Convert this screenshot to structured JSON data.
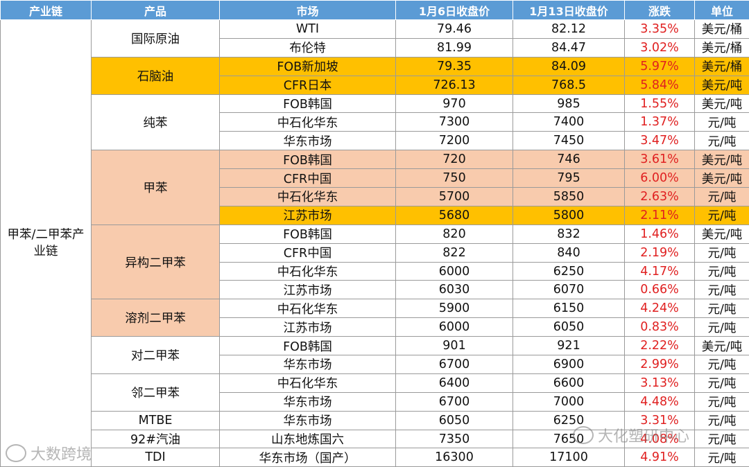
{
  "headers": {
    "chain": "产业链",
    "product": "产品",
    "market": "市场",
    "close_jan6": "1月6日收盘价",
    "close_jan13": "1月13日收盘价",
    "change": "涨跌",
    "unit": "单位"
  },
  "chain_label": "甲苯/二甲苯产业链",
  "groups": [
    {
      "product": "国际原油",
      "style": "plain",
      "rows": [
        {
          "market": "WTI",
          "jan6": "79.46",
          "jan13": "82.12",
          "change": "3.35%",
          "unit": "美元/桶",
          "hl": ""
        },
        {
          "market": "布伦特",
          "jan6": "81.99",
          "jan13": "84.47",
          "change": "3.02%",
          "unit": "美元/桶",
          "hl": ""
        }
      ]
    },
    {
      "product": "石脑油",
      "style": "gold",
      "rows": [
        {
          "market": "FOB新加坡",
          "jan6": "79.35",
          "jan13": "84.09",
          "change": "5.97%",
          "unit": "美元/桶",
          "hl": "gold"
        },
        {
          "market": "CFR日本",
          "jan6": "726.13",
          "jan13": "768.5",
          "change": "5.84%",
          "unit": "美元/吨",
          "hl": "gold"
        }
      ]
    },
    {
      "product": "纯苯",
      "style": "plain",
      "rows": [
        {
          "market": "FOB韩国",
          "jan6": "970",
          "jan13": "985",
          "change": "1.55%",
          "unit": "美元/吨",
          "hl": ""
        },
        {
          "market": "中石化华东",
          "jan6": "7300",
          "jan13": "7400",
          "change": "1.37%",
          "unit": "元/吨",
          "hl": ""
        },
        {
          "market": "华东市场",
          "jan6": "7200",
          "jan13": "7450",
          "change": "3.47%",
          "unit": "元/吨",
          "hl": ""
        }
      ]
    },
    {
      "product": "甲苯",
      "style": "peach",
      "rows": [
        {
          "market": "FOB韩国",
          "jan6": "720",
          "jan13": "746",
          "change": "3.61%",
          "unit": "美元/吨",
          "hl": "peach"
        },
        {
          "market": "CFR中国",
          "jan6": "750",
          "jan13": "795",
          "change": "6.00%",
          "unit": "美元/吨",
          "hl": "peach"
        },
        {
          "market": "中石化华东",
          "jan6": "5700",
          "jan13": "5850",
          "change": "2.63%",
          "unit": "元/吨",
          "hl": "peach"
        },
        {
          "market": "江苏市场",
          "jan6": "5680",
          "jan13": "5800",
          "change": "2.11%",
          "unit": "元/吨",
          "hl": "gold"
        }
      ]
    },
    {
      "product": "异构二甲苯",
      "style": "peach",
      "rows": [
        {
          "market": "FOB韩国",
          "jan6": "820",
          "jan13": "832",
          "change": "1.46%",
          "unit": "美元/吨",
          "hl": ""
        },
        {
          "market": "CFR中国",
          "jan6": "822",
          "jan13": "840",
          "change": "2.19%",
          "unit": "元/吨",
          "hl": ""
        },
        {
          "market": "中石化华东",
          "jan6": "6000",
          "jan13": "6250",
          "change": "4.17%",
          "unit": "元/吨",
          "hl": ""
        },
        {
          "market": "江苏市场",
          "jan6": "6030",
          "jan13": "6070",
          "change": "0.66%",
          "unit": "元/吨",
          "hl": ""
        }
      ]
    },
    {
      "product": "溶剂二甲苯",
      "style": "peach",
      "rows": [
        {
          "market": "中石化华东",
          "jan6": "5900",
          "jan13": "6150",
          "change": "4.24%",
          "unit": "元/吨",
          "hl": ""
        },
        {
          "market": "江苏市场",
          "jan6": "6000",
          "jan13": "6050",
          "change": "0.83%",
          "unit": "元/吨",
          "hl": ""
        }
      ]
    },
    {
      "product": "对二甲苯",
      "style": "plain",
      "rows": [
        {
          "market": "FOB韩国",
          "jan6": "901",
          "jan13": "921",
          "change": "2.22%",
          "unit": "美元/吨",
          "hl": ""
        },
        {
          "market": "华东市场",
          "jan6": "6700",
          "jan13": "6900",
          "change": "2.99%",
          "unit": "元/吨",
          "hl": ""
        }
      ]
    },
    {
      "product": "邻二甲苯",
      "style": "plain",
      "rows": [
        {
          "market": "中石化华东",
          "jan6": "6400",
          "jan13": "6600",
          "change": "3.13%",
          "unit": "元/吨",
          "hl": ""
        },
        {
          "market": "华东市场",
          "jan6": "6700",
          "jan13": "7000",
          "change": "4.48%",
          "unit": "元/吨",
          "hl": ""
        }
      ]
    },
    {
      "product": "MTBE",
      "style": "plain",
      "rows": [
        {
          "market": "华东市场",
          "jan6": "6050",
          "jan13": "6250",
          "change": "3.31%",
          "unit": "元/吨",
          "hl": ""
        }
      ]
    },
    {
      "product": "92#汽油",
      "style": "plain",
      "rows": [
        {
          "market": "山东地炼国六",
          "jan6": "7350",
          "jan13": "7650",
          "change": "4.08%",
          "unit": "元/吨",
          "hl": ""
        }
      ]
    },
    {
      "product": "TDI",
      "style": "plain",
      "rows": [
        {
          "market": "华东市场（国产）",
          "jan6": "16300",
          "jan13": "17100",
          "change": "4.91%",
          "unit": "元/吨",
          "hl": ""
        }
      ]
    }
  ],
  "watermarks": {
    "left": "大数跨境",
    "right": "大化塑研中心"
  }
}
